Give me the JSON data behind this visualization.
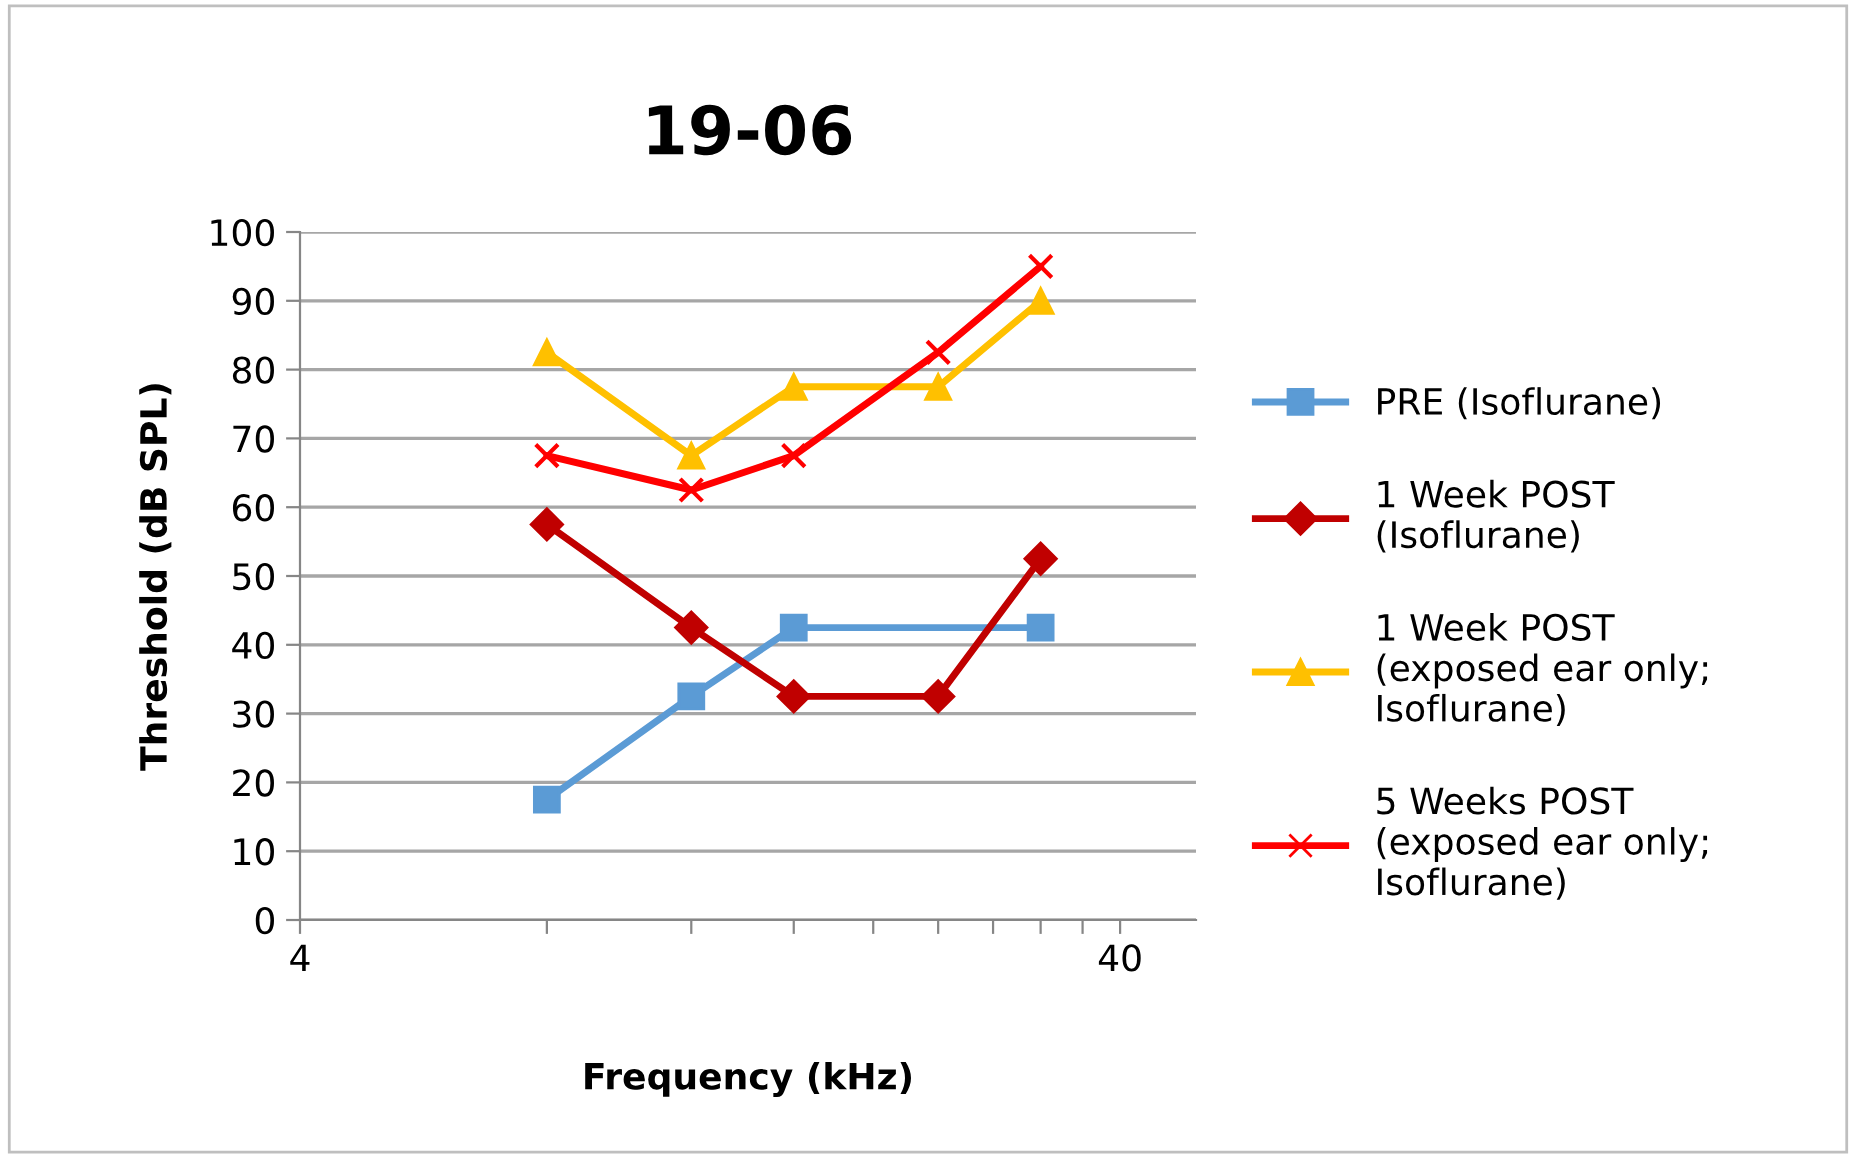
{
  "chart_data": {
    "type": "line",
    "title": "19-06",
    "xlabel": "Frequency (kHz)",
    "ylabel": "Threshold (dB SPL)",
    "log": "x",
    "xlim": [
      4,
      49.5
    ],
    "xticks": [
      4,
      {
        "value": 8,
        "label": null
      },
      {
        "value": 12,
        "label": null
      },
      {
        "value": 16,
        "label": null
      },
      {
        "value": 20,
        "label": null
      },
      {
        "value": 24,
        "label": null
      },
      {
        "value": 28,
        "label": null
      },
      {
        "value": 32,
        "label": null
      },
      {
        "value": 36,
        "label": null
      },
      40
    ],
    "ylim": [
      0,
      100
    ],
    "yticks": [
      0,
      10,
      20,
      30,
      40,
      50,
      60,
      70,
      80,
      90,
      100
    ],
    "grid": "y",
    "legend": "right",
    "series": [
      {
        "name": "PRE (Isoflurane)",
        "color": "#5b9bd5",
        "marker": "square",
        "x": [
          8,
          12,
          16,
          32
        ],
        "values": [
          17.5,
          32.5,
          42.5,
          42.5
        ]
      },
      {
        "name": "1 Week POST\n(Isoflurane)",
        "color": "#c00000",
        "marker": "diamond",
        "x": [
          8,
          12,
          16,
          24,
          32
        ],
        "values": [
          57.5,
          42.5,
          32.5,
          32.5,
          52.5
        ]
      },
      {
        "name": "1 Week POST\n(exposed ear only;\nIsoflurane)",
        "color": "#ffc000",
        "marker": "triangle",
        "x": [
          8,
          12,
          16,
          24,
          32
        ],
        "values": [
          82.5,
          67.5,
          77.5,
          77.5,
          90
        ]
      },
      {
        "name": "5 Weeks POST\n(exposed ear only;\nIsoflurane)",
        "color": "#ff0000",
        "marker": "cross",
        "x": [
          8,
          12,
          16,
          24,
          32
        ],
        "values": [
          67.5,
          62.5,
          67.5,
          82.5,
          95
        ]
      }
    ]
  }
}
